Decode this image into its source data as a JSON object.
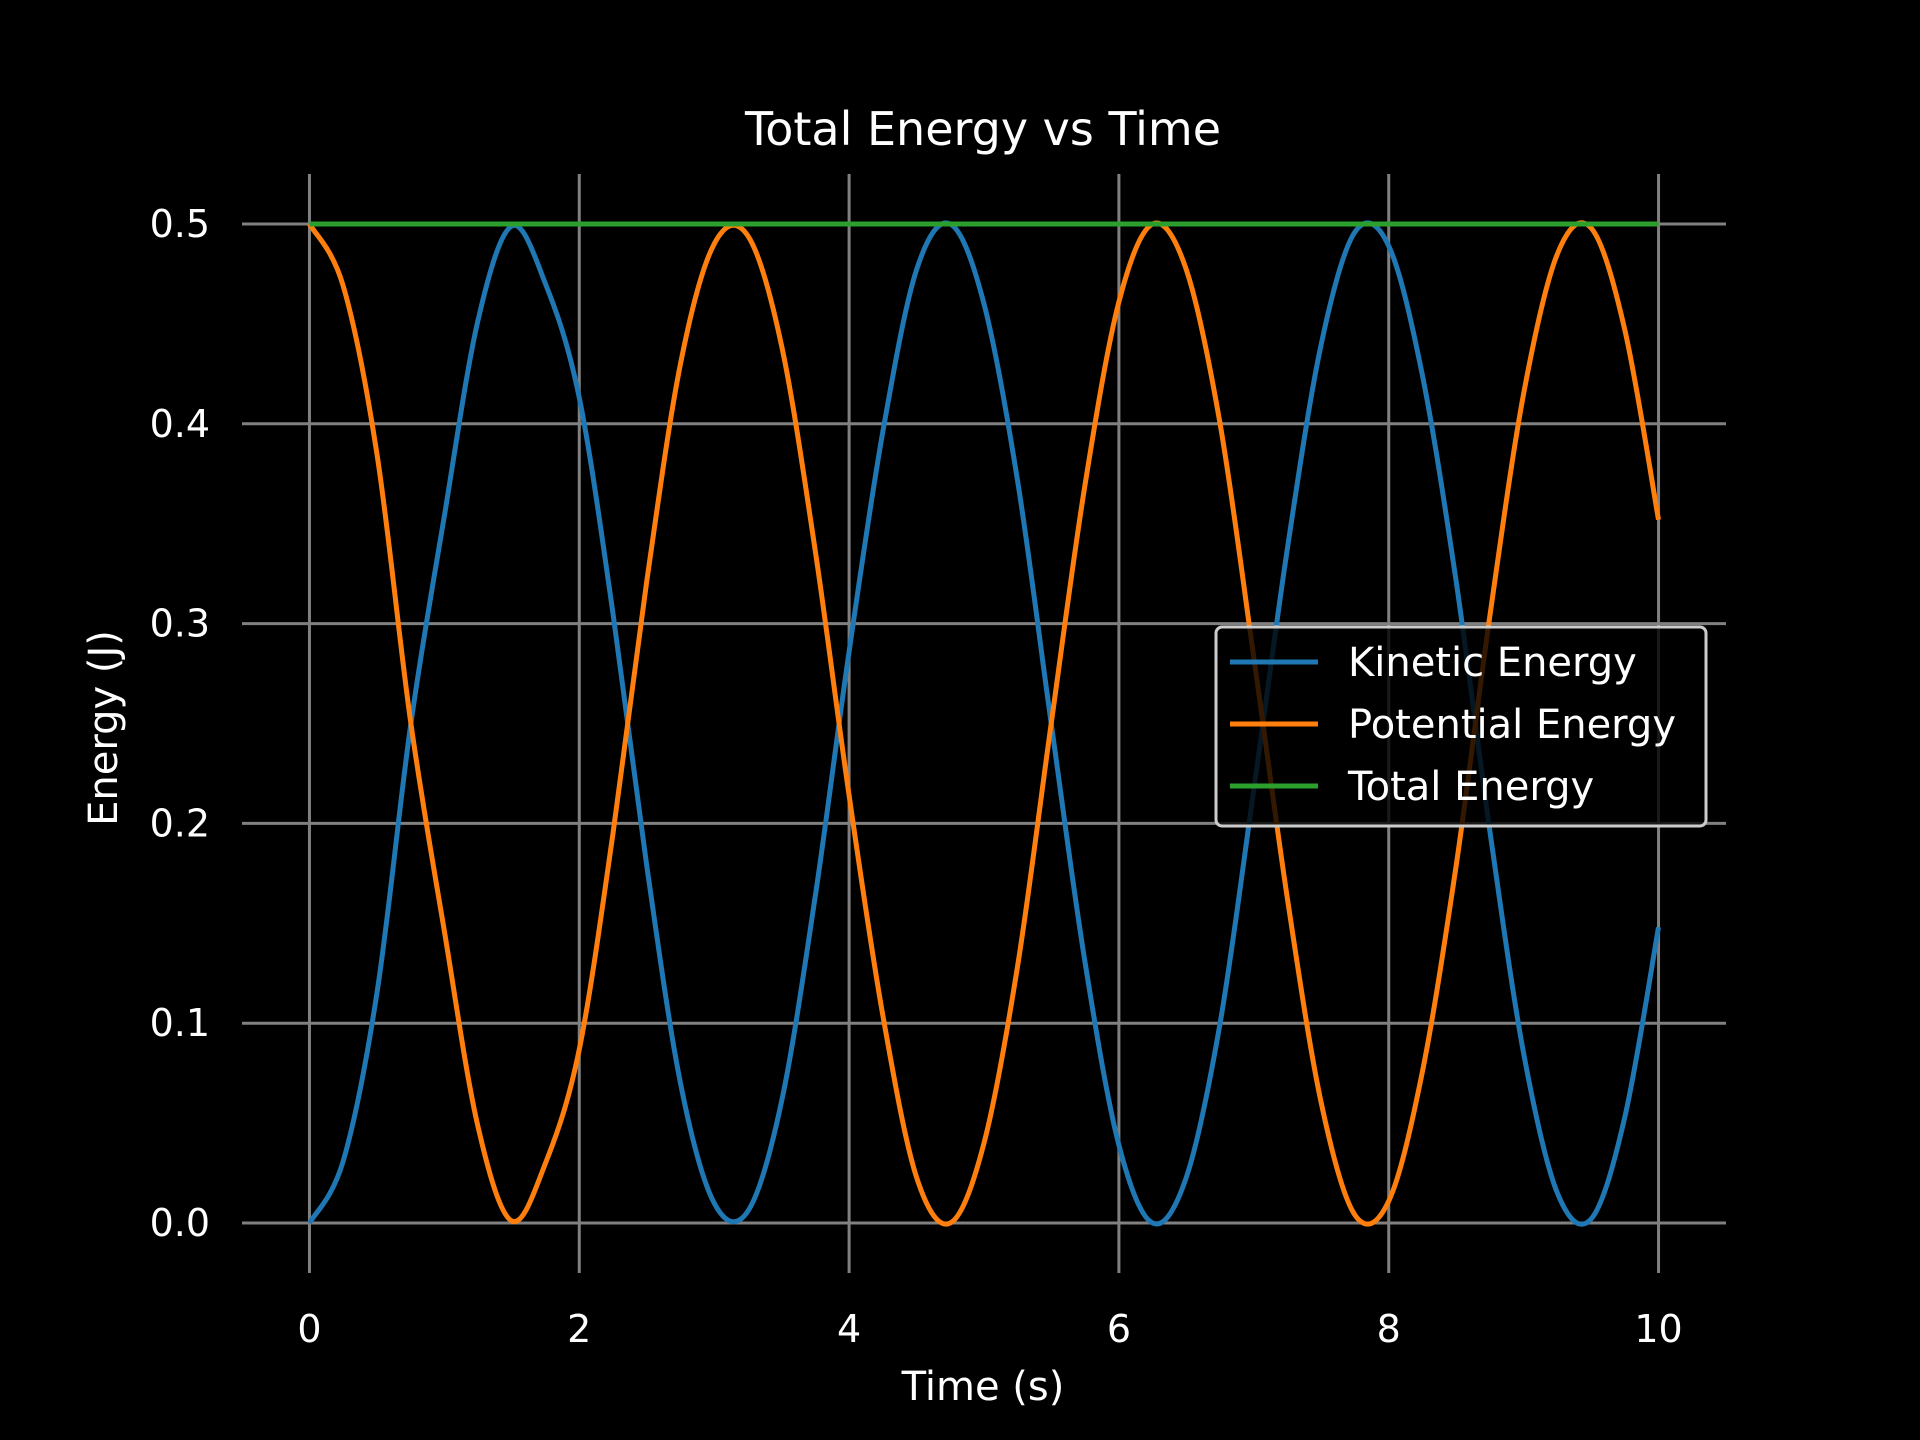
{
  "chart_data": {
    "type": "line",
    "title": "Total Energy vs Time",
    "xlabel": "Time (s)",
    "ylabel": "Energy (J)",
    "xlim": [
      -0.5,
      10.5
    ],
    "ylim": [
      -0.025,
      0.525
    ],
    "x_ticks": [
      0,
      2,
      4,
      6,
      8,
      10
    ],
    "x_tick_labels": [
      "0",
      "2",
      "4",
      "6",
      "8",
      "10"
    ],
    "y_ticks": [
      0.0,
      0.1,
      0.2,
      0.3,
      0.4,
      0.5
    ],
    "y_tick_labels": [
      "0.0",
      "0.1",
      "0.2",
      "0.3",
      "0.4",
      "0.5"
    ],
    "grid": true,
    "legend_position": "center-right",
    "background": "#000000",
    "grid_color": "#808080",
    "series": [
      {
        "name": "Kinetic Energy",
        "color": "#1f77b4",
        "x": [
          0,
          0.25,
          0.5,
          0.75,
          1.0,
          1.25,
          1.5,
          1.75,
          2.0,
          2.25,
          2.5,
          2.75,
          3.0,
          3.25,
          3.5,
          3.75,
          4.0,
          4.25,
          4.5,
          4.75,
          5.0,
          5.25,
          5.5,
          5.75,
          6.0,
          6.25,
          6.5,
          6.75,
          7.0,
          7.25,
          7.5,
          7.75,
          8.0,
          8.25,
          8.5,
          8.75,
          9.0,
          9.25,
          9.5,
          9.75,
          10.0
        ],
        "y": [
          0.0,
          0.031,
          0.115,
          0.249,
          0.354,
          0.452,
          0.499,
          0.47,
          0.413,
          0.305,
          0.179,
          0.07,
          0.01,
          0.006,
          0.061,
          0.164,
          0.286,
          0.396,
          0.477,
          0.5,
          0.46,
          0.371,
          0.249,
          0.13,
          0.039,
          0.0,
          0.023,
          0.1,
          0.217,
          0.338,
          0.44,
          0.496,
          0.489,
          0.424,
          0.321,
          0.196,
          0.085,
          0.015,
          0.002,
          0.053,
          0.148
        ]
      },
      {
        "name": "Potential Energy",
        "color": "#ff7f0e",
        "x": [
          0,
          0.25,
          0.5,
          0.75,
          1.0,
          1.25,
          1.5,
          1.75,
          2.0,
          2.25,
          2.5,
          2.75,
          3.0,
          3.25,
          3.5,
          3.75,
          4.0,
          4.25,
          4.5,
          4.75,
          5.0,
          5.25,
          5.5,
          5.75,
          6.0,
          6.25,
          6.5,
          6.75,
          7.0,
          7.25,
          7.5,
          7.75,
          8.0,
          8.25,
          8.5,
          8.75,
          9.0,
          9.25,
          9.5,
          9.75,
          10.0
        ],
        "y": [
          0.5,
          0.469,
          0.385,
          0.251,
          0.146,
          0.048,
          0.001,
          0.03,
          0.087,
          0.195,
          0.321,
          0.43,
          0.49,
          0.494,
          0.439,
          0.336,
          0.214,
          0.104,
          0.023,
          0.0,
          0.04,
          0.129,
          0.251,
          0.37,
          0.461,
          0.5,
          0.477,
          0.4,
          0.283,
          0.162,
          0.06,
          0.004,
          0.011,
          0.076,
          0.179,
          0.304,
          0.415,
          0.485,
          0.498,
          0.447,
          0.352
        ]
      },
      {
        "name": "Total Energy",
        "color": "#2ca02c",
        "x": [
          0,
          10
        ],
        "y": [
          0.5,
          0.5
        ]
      }
    ]
  }
}
